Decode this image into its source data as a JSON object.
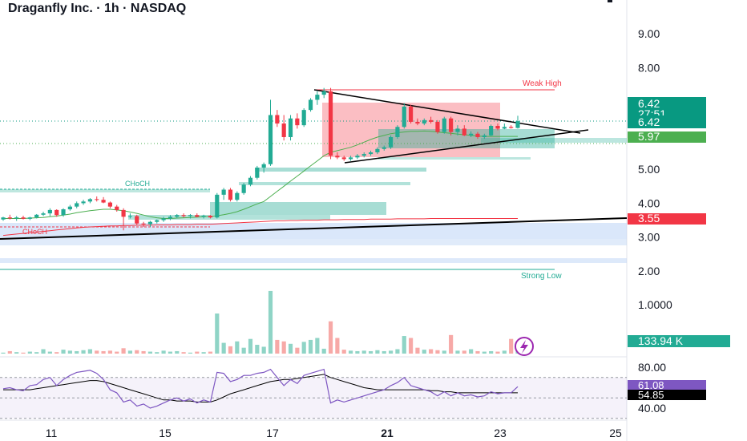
{
  "chart_data": {
    "type": "candlestick",
    "title": "Draganfly Inc. · 1h · NASDAQ",
    "price_axis": {
      "ticks": [
        "9.00",
        "8.00",
        "5.00",
        "4.00",
        "3.00",
        "2.00",
        "1.0000"
      ],
      "tick_values": [
        9,
        8,
        5,
        4,
        3,
        2,
        1
      ]
    },
    "rsi_axis": {
      "ticks": [
        "80.00",
        "40.00"
      ],
      "tick_values": [
        80,
        40
      ]
    },
    "x_ticks": [
      "11",
      "15",
      "17",
      "21",
      "23",
      "25"
    ],
    "price_labels": [
      {
        "name": "last",
        "text": "6.42",
        "color": "#089981"
      },
      {
        "name": "countdown",
        "text": "27:51",
        "color": "#089981"
      },
      {
        "name": "last-2",
        "text": "6.42",
        "color": "#089981"
      },
      {
        "name": "ma-fast",
        "text": "5.97",
        "color": "#4caf50"
      },
      {
        "name": "ma-slow",
        "text": "3.55",
        "color": "#f23645"
      }
    ],
    "volume_label": {
      "text": "133.94 K",
      "color": "#22ab94"
    },
    "rsi_labels": [
      {
        "text": "61.08",
        "color": "#7e57c2"
      },
      {
        "text": "54.85",
        "color": "#000000"
      }
    ],
    "annotations": [
      "Weak High",
      "CHoCH",
      "CHoCH",
      "Strong Low"
    ],
    "candles": [
      [
        3.52,
        3.6,
        3.48,
        3.58
      ],
      [
        3.58,
        3.66,
        3.52,
        3.55
      ],
      [
        3.55,
        3.62,
        3.48,
        3.58
      ],
      [
        3.58,
        3.63,
        3.52,
        3.54
      ],
      [
        3.54,
        3.6,
        3.5,
        3.58
      ],
      [
        3.58,
        3.68,
        3.55,
        3.66
      ],
      [
        3.66,
        3.75,
        3.62,
        3.7
      ],
      [
        3.7,
        3.85,
        3.62,
        3.8
      ],
      [
        3.8,
        3.82,
        3.6,
        3.65
      ],
      [
        3.65,
        3.85,
        3.6,
        3.82
      ],
      [
        3.82,
        3.95,
        3.78,
        3.9
      ],
      [
        3.9,
        4.05,
        3.85,
        4.0
      ],
      [
        4.0,
        4.1,
        3.95,
        4.05
      ],
      [
        4.05,
        4.15,
        4.0,
        4.12
      ],
      [
        4.12,
        4.2,
        4.05,
        4.1
      ],
      [
        4.1,
        4.18,
        4.0,
        4.02
      ],
      [
        4.02,
        4.05,
        3.85,
        3.9
      ],
      [
        3.9,
        3.95,
        3.75,
        3.8
      ],
      [
        3.8,
        3.85,
        3.2,
        3.6
      ],
      [
        3.6,
        3.7,
        3.55,
        3.62
      ],
      [
        3.62,
        3.66,
        3.35,
        3.4
      ],
      [
        3.4,
        3.45,
        3.3,
        3.38
      ],
      [
        3.38,
        3.48,
        3.3,
        3.45
      ],
      [
        3.45,
        3.52,
        3.4,
        3.5
      ],
      [
        3.5,
        3.6,
        3.45,
        3.55
      ],
      [
        3.55,
        3.65,
        3.5,
        3.6
      ],
      [
        3.6,
        3.68,
        3.55,
        3.65
      ],
      [
        3.65,
        3.7,
        3.58,
        3.62
      ],
      [
        3.62,
        3.68,
        3.55,
        3.65
      ],
      [
        3.65,
        3.7,
        3.58,
        3.6
      ],
      [
        3.6,
        3.66,
        3.55,
        3.63
      ],
      [
        3.63,
        3.65,
        3.55,
        3.58
      ],
      [
        3.58,
        4.3,
        3.55,
        4.25
      ],
      [
        4.25,
        4.45,
        4.1,
        4.4
      ],
      [
        4.4,
        4.45,
        4.05,
        4.1
      ],
      [
        4.1,
        4.35,
        4.05,
        4.3
      ],
      [
        4.3,
        4.6,
        4.25,
        4.55
      ],
      [
        4.55,
        4.8,
        4.5,
        4.75
      ],
      [
        4.75,
        5.1,
        4.7,
        5.05
      ],
      [
        5.05,
        5.2,
        4.9,
        5.15
      ],
      [
        5.15,
        7.05,
        5.1,
        6.6
      ],
      [
        6.6,
        6.75,
        6.25,
        6.35
      ],
      [
        6.35,
        6.6,
        5.85,
        5.95
      ],
      [
        5.95,
        6.6,
        5.85,
        6.5
      ],
      [
        6.5,
        6.65,
        6.2,
        6.3
      ],
      [
        6.3,
        6.8,
        6.25,
        6.75
      ],
      [
        6.75,
        7.1,
        6.7,
        7.05
      ],
      [
        7.05,
        7.3,
        6.9,
        7.2
      ],
      [
        7.2,
        7.4,
        7.1,
        7.3
      ],
      [
        7.3,
        7.4,
        5.3,
        5.4
      ],
      [
        5.4,
        5.5,
        5.3,
        5.35
      ],
      [
        5.35,
        5.4,
        5.25,
        5.3
      ],
      [
        5.3,
        5.4,
        5.25,
        5.35
      ],
      [
        5.35,
        5.45,
        5.3,
        5.4
      ],
      [
        5.4,
        5.5,
        5.35,
        5.45
      ],
      [
        5.45,
        5.55,
        5.4,
        5.5
      ],
      [
        5.5,
        5.65,
        5.45,
        5.6
      ],
      [
        5.6,
        5.7,
        5.55,
        5.65
      ],
      [
        5.65,
        6.0,
        5.6,
        5.95
      ],
      [
        5.95,
        6.3,
        5.9,
        6.25
      ],
      [
        6.25,
        6.95,
        6.2,
        6.85
      ],
      [
        6.85,
        6.9,
        6.35,
        6.4
      ],
      [
        6.4,
        6.5,
        6.3,
        6.35
      ],
      [
        6.35,
        6.5,
        6.3,
        6.45
      ],
      [
        6.45,
        6.55,
        6.35,
        6.4
      ],
      [
        6.4,
        6.45,
        6.05,
        6.1
      ],
      [
        6.1,
        6.55,
        6.05,
        6.5
      ],
      [
        6.5,
        6.55,
        6.0,
        6.1
      ],
      [
        6.1,
        6.3,
        6.0,
        6.2
      ],
      [
        6.2,
        6.3,
        5.98,
        6.0
      ],
      [
        6.0,
        6.12,
        5.95,
        6.05
      ],
      [
        6.05,
        6.1,
        5.9,
        5.95
      ],
      [
        5.95,
        6.05,
        5.9,
        6.0
      ],
      [
        6.0,
        6.32,
        5.98,
        6.28
      ],
      [
        6.28,
        6.35,
        6.15,
        6.2
      ],
      [
        6.2,
        6.35,
        6.18,
        6.25
      ],
      [
        6.25,
        6.3,
        6.2,
        6.22
      ],
      [
        6.22,
        6.58,
        6.2,
        6.42
      ]
    ],
    "volume": [
      0.02,
      0.05,
      0.03,
      0.02,
      0.04,
      0.03,
      0.09,
      0.04,
      0.03,
      0.08,
      0.06,
      0.05,
      0.07,
      0.09,
      0.06,
      0.05,
      0.06,
      0.04,
      0.11,
      0.06,
      0.07,
      0.05,
      0.04,
      0.03,
      0.06,
      0.04,
      0.05,
      0.03,
      0.02,
      0.04,
      0.03,
      0.04,
      0.82,
      0.22,
      0.15,
      0.25,
      0.12,
      0.3,
      0.18,
      0.14,
      1.28,
      0.28,
      0.25,
      0.2,
      0.12,
      0.24,
      0.28,
      0.32,
      0.1,
      0.66,
      0.32,
      0.08,
      0.06,
      0.05,
      0.06,
      0.05,
      0.07,
      0.05,
      0.06,
      0.09,
      0.36,
      0.32,
      0.12,
      0.08,
      0.09,
      0.07,
      0.06,
      0.38,
      0.06,
      0.06,
      0.09,
      0.05,
      0.04,
      0.05,
      0.04,
      0.06,
      0.3,
      0.08
    ],
    "rsi": [
      59,
      60,
      58,
      57,
      62,
      63,
      68,
      70,
      62,
      68,
      72,
      75,
      76,
      77,
      74,
      68,
      58,
      55,
      46,
      48,
      42,
      44,
      40,
      42,
      45,
      48,
      50,
      47,
      49,
      45,
      48,
      46,
      75,
      74,
      66,
      68,
      72,
      72,
      74,
      75,
      78,
      70,
      62,
      68,
      64,
      72,
      74,
      76,
      78,
      45,
      48,
      46,
      48,
      50,
      52,
      54,
      56,
      58,
      62,
      65,
      70,
      62,
      60,
      58,
      56,
      52,
      56,
      52,
      55,
      52,
      53,
      51,
      52,
      56,
      54,
      55,
      55,
      61
    ],
    "rsi_ma": [
      58,
      58,
      58,
      58,
      58,
      59,
      60,
      61,
      62,
      63,
      64,
      65,
      66,
      67,
      67,
      66,
      64,
      62,
      60,
      58,
      56,
      54,
      52,
      50,
      48,
      48,
      47,
      47,
      47,
      46,
      46,
      46,
      48,
      51,
      54,
      56,
      58,
      60,
      62,
      64,
      66,
      67,
      68,
      68,
      69,
      70,
      71,
      72,
      73,
      70,
      68,
      66,
      64,
      62,
      60,
      59,
      58,
      58,
      58,
      58,
      58,
      58,
      58,
      58,
      57,
      57,
      56,
      56,
      55,
      55,
      55,
      55,
      55,
      55,
      55,
      55,
      55,
      55
    ],
    "ma_fast": [
      3.55,
      3.55,
      3.55,
      3.55,
      3.56,
      3.57,
      3.58,
      3.6,
      3.62,
      3.65,
      3.68,
      3.72,
      3.75,
      3.78,
      3.8,
      3.82,
      3.82,
      3.8,
      3.78,
      3.74,
      3.7,
      3.65,
      3.6,
      3.57,
      3.55,
      3.55,
      3.56,
      3.57,
      3.58,
      3.59,
      3.6,
      3.61,
      3.63,
      3.66,
      3.7,
      3.75,
      3.82,
      3.9,
      3.98,
      4.05,
      4.2,
      4.35,
      4.5,
      4.65,
      4.8,
      4.95,
      5.1,
      5.25,
      5.4,
      5.5,
      5.55,
      5.6,
      5.65,
      5.72,
      5.8,
      5.88,
      5.95,
      6.0,
      6.05,
      6.08,
      6.1,
      6.12,
      6.12,
      6.13,
      6.12,
      6.1,
      6.08,
      6.06,
      6.04,
      6.02,
      6.0,
      5.98,
      5.97,
      5.97,
      5.97,
      5.97,
      5.97,
      5.97
    ],
    "ma_slow": [
      3.05,
      3.07,
      3.09,
      3.11,
      3.13,
      3.15,
      3.17,
      3.19,
      3.21,
      3.23,
      3.25,
      3.27,
      3.29,
      3.3,
      3.31,
      3.32,
      3.33,
      3.33,
      3.34,
      3.34,
      3.35,
      3.35,
      3.35,
      3.36,
      3.36,
      3.36,
      3.37,
      3.37,
      3.37,
      3.38,
      3.38,
      3.38,
      3.39,
      3.4,
      3.41,
      3.42,
      3.43,
      3.44,
      3.45,
      3.46,
      3.47,
      3.48,
      3.48,
      3.49,
      3.49,
      3.5,
      3.5,
      3.5,
      3.51,
      3.51,
      3.51,
      3.52,
      3.52,
      3.52,
      3.52,
      3.53,
      3.53,
      3.53,
      3.53,
      3.54,
      3.54,
      3.54,
      3.54,
      3.54,
      3.55,
      3.55,
      3.55,
      3.55,
      3.55,
      3.55,
      3.55,
      3.55,
      3.55,
      3.55,
      3.55,
      3.55,
      3.55,
      3.55
    ]
  }
}
